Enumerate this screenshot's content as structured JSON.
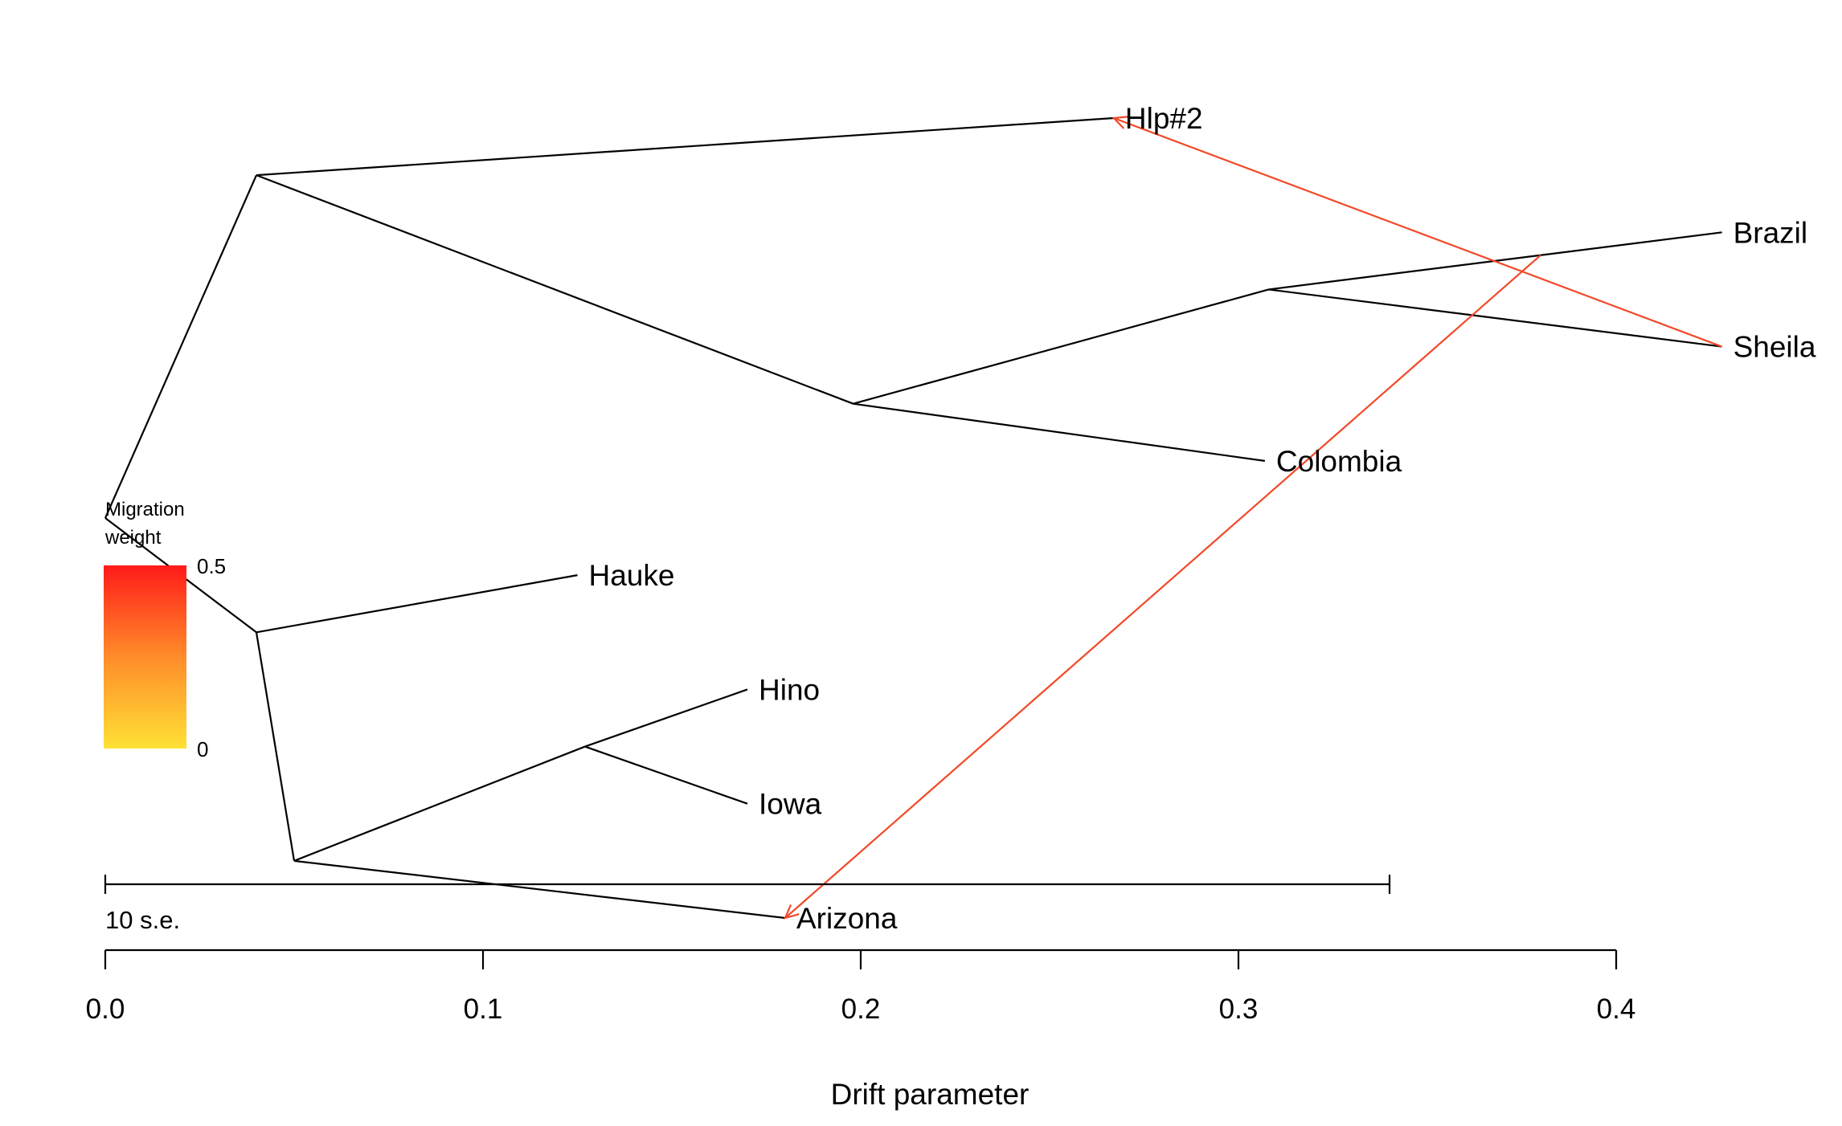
{
  "chart_data": {
    "type": "tree",
    "xlabel": "Drift parameter",
    "xlim": [
      0,
      0.4
    ],
    "x_ticks": [
      {
        "value": 0.0,
        "label": "0.0"
      },
      {
        "value": 0.1,
        "label": "0.1"
      },
      {
        "value": 0.2,
        "label": "0.2"
      },
      {
        "value": 0.3,
        "label": "0.3"
      },
      {
        "value": 0.4,
        "label": "0.4"
      }
    ],
    "ylim": [
      -0.5,
      7.5
    ],
    "nodes": [
      {
        "id": "root",
        "x": 0.0,
        "y": 3.5
      },
      {
        "id": "n1",
        "x": 0.04,
        "y": 6.5
      },
      {
        "id": "n2",
        "x": 0.198,
        "y": 4.5
      },
      {
        "id": "n3",
        "x": 0.308,
        "y": 5.5
      },
      {
        "id": "n4",
        "x": 0.04,
        "y": 2.5
      },
      {
        "id": "n5",
        "x": 0.05,
        "y": 0.5
      },
      {
        "id": "n6",
        "x": 0.127,
        "y": 1.5
      }
    ],
    "leaves": [
      {
        "id": "hlp2",
        "name": "Hlp#2",
        "x": 0.267,
        "y": 7
      },
      {
        "id": "brazil",
        "name": "Brazil",
        "x": 0.428,
        "y": 6
      },
      {
        "id": "sheila",
        "name": "Sheila",
        "x": 0.428,
        "y": 5
      },
      {
        "id": "colombia",
        "name": "Colombia",
        "x": 0.307,
        "y": 4
      },
      {
        "id": "hauke",
        "name": "Hauke",
        "x": 0.125,
        "y": 3
      },
      {
        "id": "hino",
        "name": "Hino",
        "x": 0.17,
        "y": 2
      },
      {
        "id": "iowa",
        "name": "Iowa",
        "x": 0.17,
        "y": 1
      },
      {
        "id": "arizona",
        "name": "Arizona",
        "x": 0.18,
        "y": 0
      }
    ],
    "edges": [
      [
        "root",
        "n1"
      ],
      [
        "n1",
        "hlp2"
      ],
      [
        "n1",
        "n2"
      ],
      [
        "n2",
        "n3"
      ],
      [
        "n3",
        "brazil"
      ],
      [
        "n3",
        "sheila"
      ],
      [
        "n2",
        "colombia"
      ],
      [
        "root",
        "n4"
      ],
      [
        "n4",
        "hauke"
      ],
      [
        "n4",
        "n5"
      ],
      [
        "n5",
        "n6"
      ],
      [
        "n6",
        "hino"
      ],
      [
        "n6",
        "iowa"
      ],
      [
        "n5",
        "arizona"
      ]
    ],
    "migrations": [
      {
        "from_x": 0.428,
        "from_y": 5,
        "to_x": 0.267,
        "to_y": 7,
        "weight": 0.42
      },
      {
        "from_x": 0.38,
        "from_y": 5.8,
        "to_x": 0.18,
        "to_y": 0,
        "weight": 0.42
      }
    ],
    "legend": {
      "title_lines": [
        "Migration",
        "weight"
      ],
      "max_label": "0.5",
      "min_label": "0",
      "color_max": "#ff1a1a",
      "color_mid": "#ff8c2a",
      "color_min": "#ffe135",
      "placement": "left"
    },
    "scale_bar": {
      "label": "10 s.e.",
      "x_start": 0.0,
      "x_end": 0.34
    },
    "colors": {
      "tree": "#000000",
      "migration": "#f24a2a"
    }
  }
}
